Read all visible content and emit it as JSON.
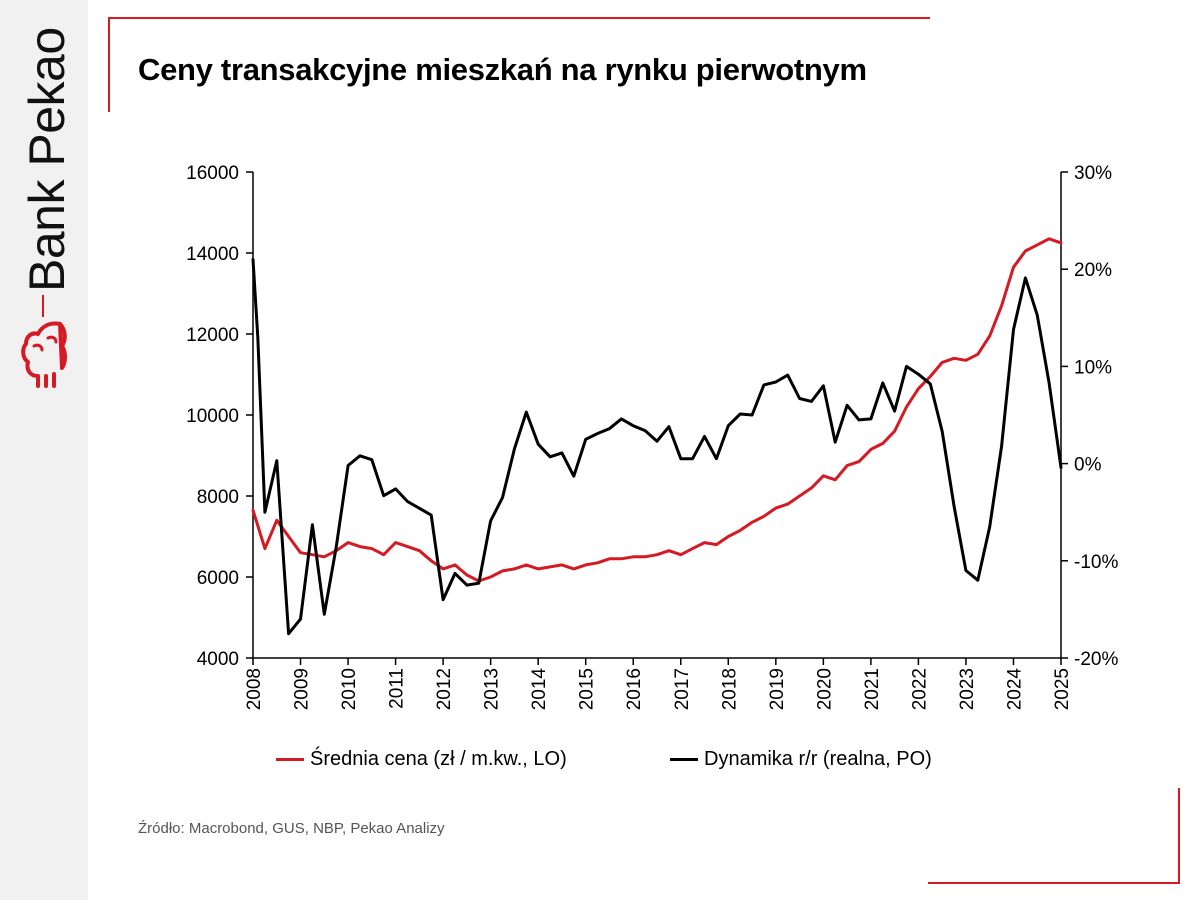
{
  "brand": {
    "name": "Bank Pekao",
    "accent": "#d51a24"
  },
  "page": {
    "title": "Ceny transakcyjne mieszkań na rynku pierwotnym"
  },
  "source": "Źródło: Macrobond, GUS, NBP, Pekao Analizy",
  "chart_data": {
    "type": "line",
    "title": "Ceny transakcyjne mieszkań na rynku pierwotnym",
    "x_ticks": [
      "2008",
      "2009",
      "2010",
      "2011",
      "2012",
      "2013",
      "2014",
      "2015",
      "2016",
      "2017",
      "2018",
      "2019",
      "2020",
      "2021",
      "2022",
      "2023",
      "2024",
      "2025"
    ],
    "y_left": {
      "ticks": [
        "4000",
        "6000",
        "8000",
        "10000",
        "12000",
        "14000",
        "16000"
      ],
      "lim": [
        4000,
        16000
      ]
    },
    "y_right": {
      "ticks": [
        "-20%",
        "-10%",
        "0%",
        "10%",
        "20%",
        "30%"
      ],
      "lim": [
        -20,
        30
      ]
    },
    "xlim": [
      2008.0,
      2025.0
    ],
    "grid": false,
    "legend_position": "bottom",
    "series": [
      {
        "name": "Średnia cena (zł / m.kw., LO)",
        "axis": "left",
        "color": "#d51a24",
        "x": [
          2008.0,
          2008.25,
          2008.5,
          2008.75,
          2009.0,
          2009.25,
          2009.5,
          2009.75,
          2010.0,
          2010.25,
          2010.5,
          2010.75,
          2011.0,
          2011.25,
          2011.5,
          2011.75,
          2012.0,
          2012.25,
          2012.5,
          2012.75,
          2013.0,
          2013.25,
          2013.5,
          2013.75,
          2014.0,
          2014.25,
          2014.5,
          2014.75,
          2015.0,
          2015.25,
          2015.5,
          2015.75,
          2016.0,
          2016.25,
          2016.5,
          2016.75,
          2017.0,
          2017.25,
          2017.5,
          2017.75,
          2018.0,
          2018.25,
          2018.5,
          2018.75,
          2019.0,
          2019.25,
          2019.5,
          2019.75,
          2020.0,
          2020.25,
          2020.5,
          2020.75,
          2021.0,
          2021.25,
          2021.5,
          2021.75,
          2022.0,
          2022.25,
          2022.5,
          2022.75,
          2023.0,
          2023.25,
          2023.5,
          2023.75,
          2024.0,
          2024.25,
          2024.5,
          2024.75,
          2025.0
        ],
        "values": [
          7650,
          6700,
          7400,
          7000,
          6600,
          6550,
          6500,
          6650,
          6850,
          6750,
          6700,
          6550,
          6850,
          6750,
          6650,
          6400,
          6200,
          6300,
          6050,
          5900,
          6000,
          6150,
          6200,
          6300,
          6200,
          6250,
          6300,
          6200,
          6300,
          6350,
          6450,
          6450,
          6500,
          6500,
          6550,
          6650,
          6550,
          6700,
          6850,
          6800,
          7000,
          7150,
          7350,
          7500,
          7700,
          7800,
          8000,
          8200,
          8500,
          8400,
          8750,
          8850,
          9150,
          9300,
          9600,
          10200,
          10650,
          10950,
          11300,
          11400,
          11350,
          11500,
          11950,
          12700,
          13650,
          14050,
          14200,
          14350,
          14250
        ]
      },
      {
        "name": "Dynamika r/r (realna, PO)",
        "axis": "right",
        "color": "#000000",
        "x": [
          2008.0,
          2008.1,
          2008.25,
          2008.5,
          2008.75,
          2009.0,
          2009.25,
          2009.5,
          2009.75,
          2010.0,
          2010.25,
          2010.5,
          2010.75,
          2011.0,
          2011.25,
          2011.5,
          2011.75,
          2012.0,
          2012.25,
          2012.5,
          2012.75,
          2013.0,
          2013.25,
          2013.5,
          2013.75,
          2014.0,
          2014.25,
          2014.5,
          2014.75,
          2015.0,
          2015.25,
          2015.5,
          2015.75,
          2016.0,
          2016.25,
          2016.5,
          2016.75,
          2017.0,
          2017.25,
          2017.5,
          2017.75,
          2018.0,
          2018.25,
          2018.5,
          2018.75,
          2019.0,
          2019.25,
          2019.5,
          2019.75,
          2020.0,
          2020.25,
          2020.5,
          2020.75,
          2021.0,
          2021.25,
          2021.5,
          2021.75,
          2022.0,
          2022.25,
          2022.5,
          2022.75,
          2023.0,
          2023.25,
          2023.5,
          2023.75,
          2024.0,
          2024.25,
          2024.5,
          2024.75,
          2025.0
        ],
        "values": [
          21,
          13,
          -5,
          0.3,
          -17.5,
          -16,
          -6.3,
          -15.5,
          -8.6,
          -0.2,
          0.8,
          0.4,
          -3.3,
          -2.6,
          -3.9,
          -4.6,
          -5.3,
          -14,
          -11.3,
          -12.5,
          -12.3,
          -5.9,
          -3.5,
          1.5,
          5.3,
          2,
          0.7,
          1.1,
          -1.3,
          2.5,
          3.1,
          3.6,
          4.6,
          3.9,
          3.4,
          2.3,
          3.8,
          0.5,
          0.5,
          2.8,
          0.5,
          3.9,
          5.1,
          5,
          8.1,
          8.4,
          9.1,
          6.7,
          6.4,
          8,
          2.2,
          6,
          4.5,
          4.6,
          8.3,
          5.4,
          10,
          9.2,
          8.2,
          3.3,
          -4.4,
          -11,
          -12,
          -6.5,
          1.8,
          13.8,
          19.1,
          15.3,
          8.3,
          -0.4
        ]
      }
    ]
  }
}
